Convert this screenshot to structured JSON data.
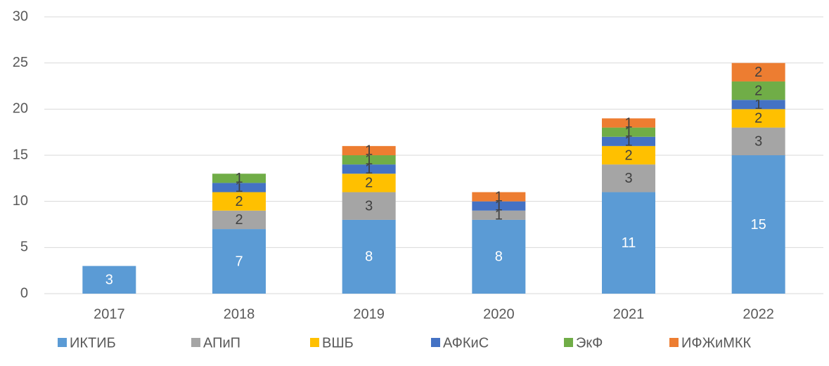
{
  "chart_data": {
    "type": "stacked_bar",
    "categories": [
      "2017",
      "2018",
      "2019",
      "2020",
      "2021",
      "2022"
    ],
    "series": [
      {
        "name": "ИКТИБ",
        "color": "#5b9bd5",
        "values": [
          3,
          7,
          8,
          8,
          11,
          15
        ]
      },
      {
        "name": "АПиП",
        "color": "#a5a5a5",
        "values": [
          null,
          2,
          3,
          1,
          3,
          3
        ]
      },
      {
        "name": "ВШБ",
        "color": "#ffc000",
        "values": [
          null,
          2,
          2,
          null,
          2,
          2
        ]
      },
      {
        "name": "АФКиС",
        "color": "#4472c4",
        "values": [
          null,
          1,
          1,
          1,
          1,
          1
        ]
      },
      {
        "name": "ЭкФ",
        "color": "#70ad47",
        "values": [
          null,
          1,
          1,
          null,
          1,
          2
        ]
      },
      {
        "name": "ИФЖиМКК",
        "color": "#ed7d31",
        "values": [
          null,
          null,
          1,
          1,
          1,
          2
        ]
      }
    ],
    "ylim": [
      0,
      30
    ],
    "yticks": [
      0,
      5,
      10,
      15,
      20,
      25,
      30
    ],
    "grid": true,
    "legend": "bottom"
  }
}
